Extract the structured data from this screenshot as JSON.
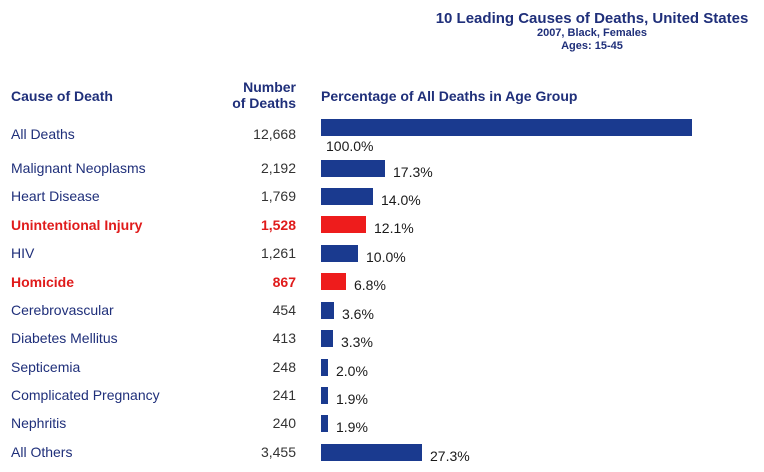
{
  "chart_data": {
    "type": "bar",
    "orientation": "horizontal",
    "title": "10 Leading Causes of Deaths, United States",
    "subtitle_lines": [
      "2007, Black, Females",
      "Ages: 15-45"
    ],
    "column_headers": {
      "cause": "Cause of Death",
      "count_line1": "Number",
      "count_line2": "of Deaths",
      "percentage": "Percentage of All Deaths in Age Group"
    },
    "xlim": [
      0,
      100
    ],
    "colors": {
      "default": "#1a3a8f",
      "highlight": "#ee1c1c"
    },
    "rows": [
      {
        "cause": "All Deaths",
        "count": "12,668",
        "value": 100.0,
        "label": "100.0%",
        "highlight": false
      },
      {
        "cause": "Malignant Neoplasms",
        "count": "2,192",
        "value": 17.3,
        "label": "17.3%",
        "highlight": false
      },
      {
        "cause": "Heart Disease",
        "count": "1,769",
        "value": 14.0,
        "label": "14.0%",
        "highlight": false
      },
      {
        "cause": "Unintentional Injury",
        "count": "1,528",
        "value": 12.1,
        "label": "12.1%",
        "highlight": true
      },
      {
        "cause": "HIV",
        "count": "1,261",
        "value": 10.0,
        "label": "10.0%",
        "highlight": false
      },
      {
        "cause": "Homicide",
        "count": "867",
        "value": 6.8,
        "label": "6.8%",
        "highlight": true
      },
      {
        "cause": "Cerebrovascular",
        "count": "454",
        "value": 3.6,
        "label": "3.6%",
        "highlight": false
      },
      {
        "cause": "Diabetes Mellitus",
        "count": "413",
        "value": 3.3,
        "label": "3.3%",
        "highlight": false
      },
      {
        "cause": "Septicemia",
        "count": "248",
        "value": 2.0,
        "label": "2.0%",
        "highlight": false
      },
      {
        "cause": "Complicated Pregnancy",
        "count": "241",
        "value": 1.9,
        "label": "1.9%",
        "highlight": false
      },
      {
        "cause": "Nephritis",
        "count": "240",
        "value": 1.9,
        "label": "1.9%",
        "highlight": false
      },
      {
        "cause": "All Others",
        "count": "3,455",
        "value": 27.3,
        "label": "27.3%",
        "highlight": false
      }
    ]
  }
}
